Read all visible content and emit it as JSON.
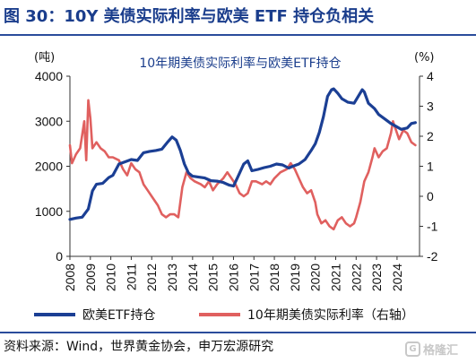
{
  "header": {
    "title": "图 30：10Y 美债实际利率与欧美 ETF 持仓负相关"
  },
  "footer": {
    "source": "资料来源：Wind，世界黄金协会，申万宏源研究"
  },
  "watermark": {
    "text": "格隆汇",
    "mark": "G"
  },
  "colors": {
    "etf": "#1b3f94",
    "rate": "#e0605f",
    "title": "#1a3d8c",
    "rule": "#2a4c9b"
  },
  "chart_data": {
    "type": "line",
    "title": "10年期美债实际利率与欧美ETF持仓",
    "left_unit": "(吨)",
    "right_unit": "(%)",
    "x_labels": [
      "2008",
      "2009",
      "2010",
      "2011",
      "2012",
      "2013",
      "2014",
      "2015",
      "2016",
      "2017",
      "2018",
      "2019",
      "2020",
      "2021",
      "2022",
      "2023",
      "2024"
    ],
    "xlim": [
      2008,
      2025.1
    ],
    "y_left": {
      "lim": [
        0,
        4000
      ],
      "ticks": [
        0,
        1000,
        2000,
        3000,
        4000
      ]
    },
    "y_right": {
      "lim": [
        -2,
        4
      ],
      "ticks": [
        -2,
        -1,
        0,
        1,
        2,
        3,
        4
      ]
    },
    "legend": {
      "placement": "bottom"
    },
    "series": [
      {
        "name": "欧美ETF持仓",
        "axis": "left",
        "points": [
          [
            2008.0,
            820
          ],
          [
            2008.3,
            850
          ],
          [
            2008.6,
            870
          ],
          [
            2008.9,
            1050
          ],
          [
            2009.1,
            1450
          ],
          [
            2009.3,
            1600
          ],
          [
            2009.6,
            1620
          ],
          [
            2009.9,
            1750
          ],
          [
            2010.1,
            1800
          ],
          [
            2010.4,
            2050
          ],
          [
            2010.7,
            2100
          ],
          [
            2011.0,
            2150
          ],
          [
            2011.3,
            2130
          ],
          [
            2011.6,
            2300
          ],
          [
            2011.9,
            2330
          ],
          [
            2012.2,
            2350
          ],
          [
            2012.5,
            2380
          ],
          [
            2012.8,
            2550
          ],
          [
            2013.0,
            2650
          ],
          [
            2013.2,
            2580
          ],
          [
            2013.4,
            2350
          ],
          [
            2013.6,
            2050
          ],
          [
            2013.8,
            1850
          ],
          [
            2014.0,
            1780
          ],
          [
            2014.3,
            1760
          ],
          [
            2014.6,
            1740
          ],
          [
            2014.9,
            1680
          ],
          [
            2015.2,
            1670
          ],
          [
            2015.5,
            1640
          ],
          [
            2015.8,
            1580
          ],
          [
            2016.0,
            1560
          ],
          [
            2016.2,
            1750
          ],
          [
            2016.5,
            2050
          ],
          [
            2016.7,
            2120
          ],
          [
            2016.9,
            1900
          ],
          [
            2017.2,
            1930
          ],
          [
            2017.5,
            1970
          ],
          [
            2017.8,
            2000
          ],
          [
            2018.1,
            2050
          ],
          [
            2018.4,
            2030
          ],
          [
            2018.7,
            1960
          ],
          [
            2018.9,
            2000
          ],
          [
            2019.2,
            2050
          ],
          [
            2019.5,
            2150
          ],
          [
            2019.8,
            2350
          ],
          [
            2020.0,
            2500
          ],
          [
            2020.2,
            2750
          ],
          [
            2020.4,
            3100
          ],
          [
            2020.6,
            3550
          ],
          [
            2020.8,
            3700
          ],
          [
            2020.9,
            3720
          ],
          [
            2021.1,
            3620
          ],
          [
            2021.3,
            3500
          ],
          [
            2021.6,
            3420
          ],
          [
            2021.9,
            3400
          ],
          [
            2022.1,
            3550
          ],
          [
            2022.3,
            3700
          ],
          [
            2022.4,
            3650
          ],
          [
            2022.6,
            3400
          ],
          [
            2022.9,
            3280
          ],
          [
            2023.1,
            3150
          ],
          [
            2023.4,
            3050
          ],
          [
            2023.7,
            2950
          ],
          [
            2023.9,
            2900
          ],
          [
            2024.2,
            2820
          ],
          [
            2024.5,
            2850
          ],
          [
            2024.7,
            2950
          ],
          [
            2024.9,
            2970
          ]
        ]
      },
      {
        "name": "10年期美债实际利率（右轴）",
        "axis": "right",
        "points": [
          [
            2008.0,
            1.7
          ],
          [
            2008.1,
            1.1
          ],
          [
            2008.3,
            1.4
          ],
          [
            2008.5,
            1.6
          ],
          [
            2008.7,
            2.5
          ],
          [
            2008.8,
            1.2
          ],
          [
            2008.9,
            3.2
          ],
          [
            2009.0,
            2.6
          ],
          [
            2009.1,
            1.6
          ],
          [
            2009.3,
            1.8
          ],
          [
            2009.5,
            1.6
          ],
          [
            2009.7,
            1.5
          ],
          [
            2009.9,
            1.3
          ],
          [
            2010.1,
            1.3
          ],
          [
            2010.4,
            1.2
          ],
          [
            2010.6,
            0.9
          ],
          [
            2010.8,
            0.7
          ],
          [
            2011.0,
            1.1
          ],
          [
            2011.2,
            0.9
          ],
          [
            2011.4,
            0.8
          ],
          [
            2011.6,
            0.4
          ],
          [
            2011.8,
            0.2
          ],
          [
            2012.0,
            0.0
          ],
          [
            2012.3,
            -0.3
          ],
          [
            2012.5,
            -0.6
          ],
          [
            2012.7,
            -0.7
          ],
          [
            2012.9,
            -0.6
          ],
          [
            2013.1,
            -0.6
          ],
          [
            2013.3,
            -0.7
          ],
          [
            2013.5,
            0.3
          ],
          [
            2013.7,
            0.8
          ],
          [
            2013.9,
            0.6
          ],
          [
            2014.1,
            0.5
          ],
          [
            2014.4,
            0.4
          ],
          [
            2014.6,
            0.3
          ],
          [
            2014.8,
            0.5
          ],
          [
            2015.0,
            0.2
          ],
          [
            2015.2,
            0.4
          ],
          [
            2015.5,
            0.6
          ],
          [
            2015.7,
            0.8
          ],
          [
            2015.9,
            0.6
          ],
          [
            2016.1,
            0.4
          ],
          [
            2016.3,
            0.1
          ],
          [
            2016.5,
            0.0
          ],
          [
            2016.7,
            0.1
          ],
          [
            2016.9,
            0.5
          ],
          [
            2017.1,
            0.5
          ],
          [
            2017.4,
            0.4
          ],
          [
            2017.6,
            0.5
          ],
          [
            2017.8,
            0.4
          ],
          [
            2018.0,
            0.6
          ],
          [
            2018.3,
            0.8
          ],
          [
            2018.6,
            0.9
          ],
          [
            2018.8,
            1.1
          ],
          [
            2019.0,
            0.9
          ],
          [
            2019.2,
            0.6
          ],
          [
            2019.4,
            0.3
          ],
          [
            2019.6,
            0.1
          ],
          [
            2019.8,
            0.2
          ],
          [
            2020.0,
            -0.2
          ],
          [
            2020.1,
            -0.6
          ],
          [
            2020.3,
            -0.9
          ],
          [
            2020.5,
            -0.8
          ],
          [
            2020.7,
            -1.0
          ],
          [
            2020.9,
            -1.1
          ],
          [
            2021.1,
            -0.8
          ],
          [
            2021.3,
            -0.7
          ],
          [
            2021.5,
            -0.9
          ],
          [
            2021.7,
            -1.0
          ],
          [
            2021.9,
            -0.9
          ],
          [
            2022.0,
            -0.7
          ],
          [
            2022.2,
            -0.2
          ],
          [
            2022.4,
            0.5
          ],
          [
            2022.6,
            0.8
          ],
          [
            2022.8,
            1.3
          ],
          [
            2022.9,
            1.6
          ],
          [
            2023.1,
            1.3
          ],
          [
            2023.3,
            1.5
          ],
          [
            2023.5,
            1.6
          ],
          [
            2023.7,
            2.1
          ],
          [
            2023.8,
            2.5
          ],
          [
            2023.9,
            2.3
          ],
          [
            2024.1,
            1.9
          ],
          [
            2024.3,
            2.2
          ],
          [
            2024.5,
            2.1
          ],
          [
            2024.7,
            1.8
          ],
          [
            2024.9,
            1.7
          ]
        ]
      }
    ]
  }
}
